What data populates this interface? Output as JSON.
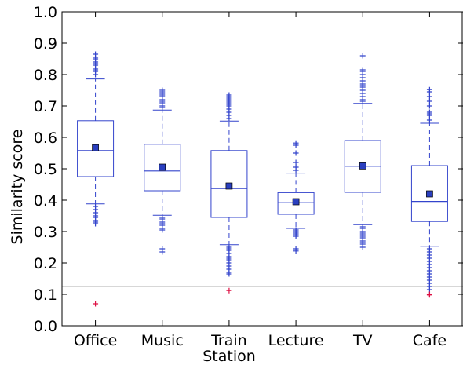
{
  "chart_data": {
    "type": "box",
    "title": "",
    "xlabel": "Station",
    "ylabel": "Similarity score",
    "ylim": [
      0.0,
      1.0
    ],
    "yticks": [
      "0.0",
      "0.1",
      "0.2",
      "0.3",
      "0.4",
      "0.5",
      "0.6",
      "0.7",
      "0.8",
      "0.9",
      "1.0"
    ],
    "grid": false,
    "reference_line": {
      "y": 0.125,
      "color": "#bfbfbf"
    },
    "colors": {
      "box": "#3344cc",
      "mean_marker": "#2a3fbf",
      "outlier_low": "#dd1144"
    },
    "categories": [
      "Office",
      "Music",
      "Train",
      "Lecture",
      "TV",
      "Cafe"
    ],
    "boxes": [
      {
        "category": "Office",
        "q1": 0.475,
        "median": 0.558,
        "q3": 0.653,
        "whisker_low": 0.388,
        "whisker_high": 0.786,
        "mean": 0.567,
        "outliers_high": [
          0.8,
          0.81,
          0.815,
          0.82,
          0.83,
          0.835,
          0.84,
          0.85,
          0.855,
          0.865
        ],
        "outliers_low": [
          0.38,
          0.37,
          0.36,
          0.35,
          0.345,
          0.335,
          0.33,
          0.325
        ],
        "outliers_red": [
          0.07
        ]
      },
      {
        "category": "Music",
        "q1": 0.43,
        "median": 0.493,
        "q3": 0.578,
        "whisker_low": 0.352,
        "whisker_high": 0.687,
        "mean": 0.505,
        "outliers_high": [
          0.695,
          0.7,
          0.71,
          0.715,
          0.72,
          0.73,
          0.735,
          0.74,
          0.745,
          0.75
        ],
        "outliers_low": [
          0.345,
          0.34,
          0.33,
          0.325,
          0.32,
          0.31,
          0.305,
          0.245,
          0.235
        ],
        "outliers_red": []
      },
      {
        "category": "Train",
        "q1": 0.345,
        "median": 0.437,
        "q3": 0.558,
        "whisker_low": 0.258,
        "whisker_high": 0.652,
        "mean": 0.445,
        "outliers_high": [
          0.66,
          0.67,
          0.68,
          0.69,
          0.7,
          0.705,
          0.71,
          0.715,
          0.72,
          0.725,
          0.73,
          0.735
        ],
        "outliers_low": [
          0.25,
          0.245,
          0.24,
          0.23,
          0.22,
          0.215,
          0.21,
          0.2,
          0.19,
          0.18,
          0.17,
          0.165
        ],
        "outliers_red": [
          0.112
        ]
      },
      {
        "category": "Lecture",
        "q1": 0.355,
        "median": 0.392,
        "q3": 0.424,
        "whisker_low": 0.31,
        "whisker_high": 0.486,
        "mean": 0.395,
        "outliers_high": [
          0.495,
          0.505,
          0.52,
          0.55,
          0.575,
          0.582
        ],
        "outliers_low": [
          0.305,
          0.3,
          0.295,
          0.29,
          0.285,
          0.245,
          0.238
        ],
        "outliers_red": []
      },
      {
        "category": "TV",
        "q1": 0.425,
        "median": 0.508,
        "q3": 0.59,
        "whisker_low": 0.322,
        "whisker_high": 0.708,
        "mean": 0.509,
        "outliers_high": [
          0.715,
          0.72,
          0.73,
          0.74,
          0.75,
          0.76,
          0.765,
          0.77,
          0.78,
          0.79,
          0.8,
          0.81,
          0.815,
          0.86
        ],
        "outliers_low": [
          0.315,
          0.31,
          0.3,
          0.295,
          0.29,
          0.285,
          0.28,
          0.27,
          0.265,
          0.26,
          0.25
        ],
        "outliers_red": []
      },
      {
        "category": "Cafe",
        "q1": 0.332,
        "median": 0.396,
        "q3": 0.51,
        "whisker_low": 0.253,
        "whisker_high": 0.645,
        "mean": 0.42,
        "outliers_high": [
          0.655,
          0.67,
          0.675,
          0.68,
          0.7,
          0.715,
          0.73,
          0.745,
          0.752
        ],
        "outliers_low": [
          0.245,
          0.235,
          0.225,
          0.215,
          0.205,
          0.195,
          0.185,
          0.175,
          0.165,
          0.155,
          0.145,
          0.135,
          0.125,
          0.115
        ],
        "outliers_red": [
          0.1,
          0.098
        ]
      }
    ]
  }
}
